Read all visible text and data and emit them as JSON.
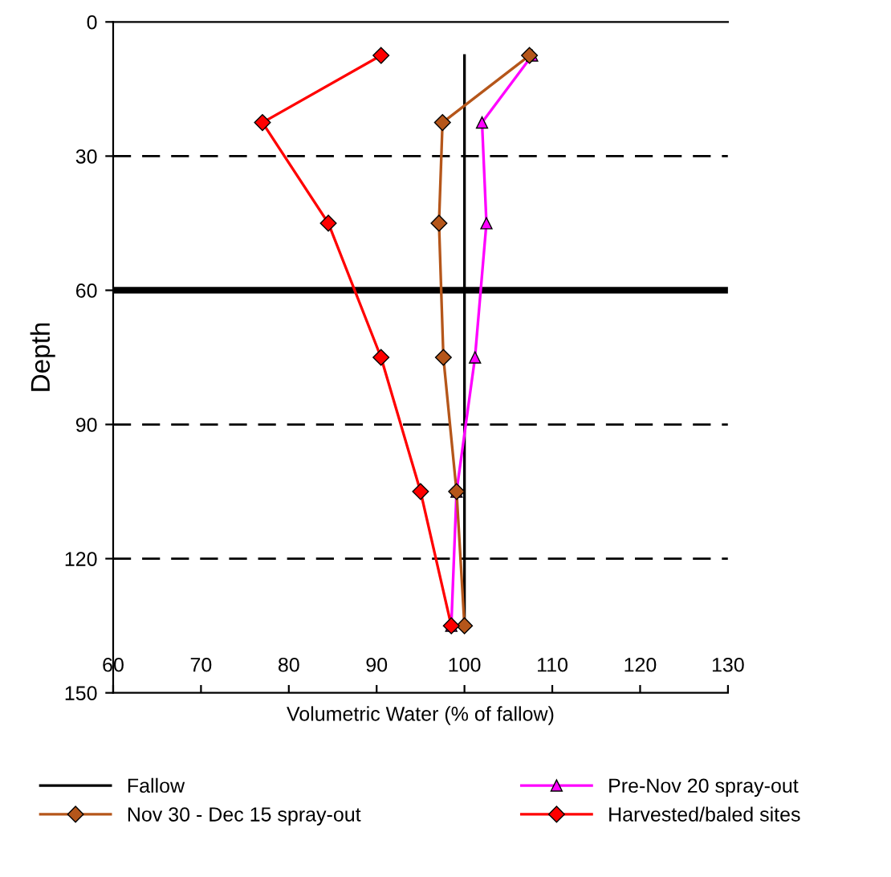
{
  "chart_data": {
    "type": "line",
    "xlabel": "Volumetric Water (% of fallow)",
    "ylabel": "Depth",
    "xlim": [
      60,
      130
    ],
    "xticks": [
      60,
      70,
      80,
      90,
      100,
      110,
      120,
      130
    ],
    "ylim": [
      150,
      0
    ],
    "yticks": [
      0,
      30,
      60,
      90,
      120,
      150
    ],
    "grid": false,
    "legend": "bottom",
    "ref_lines": [
      {
        "axis": "y",
        "value": 30,
        "color": "#000000",
        "line_style": "dashed"
      },
      {
        "axis": "y",
        "value": 60,
        "color": "#000000",
        "line_style": "solid"
      },
      {
        "axis": "y",
        "value": 90,
        "color": "#000000",
        "line_style": "dashed"
      },
      {
        "axis": "y",
        "value": 120,
        "color": "#000000",
        "line_style": "dashed"
      }
    ],
    "series": [
      {
        "name": "Fallow",
        "color": "#000000",
        "x": [
          100,
          100
        ],
        "values": [
          7.5,
          135
        ]
      },
      {
        "name": "Pre-Nov 20 spray-out",
        "color": "#ff00ff",
        "marker": "triangle",
        "x": [
          107.7,
          102,
          102.5,
          101.2,
          99.1,
          98.5
        ],
        "values": [
          7.5,
          22.5,
          45,
          75,
          105,
          135
        ]
      },
      {
        "name": "Nov 30 - Dec 15 spray-out",
        "color": "#b5561a",
        "marker": "diamond",
        "x": [
          107.4,
          97.5,
          97.1,
          97.6,
          99.1,
          100
        ],
        "values": [
          7.5,
          22.5,
          45,
          75,
          105,
          135
        ]
      },
      {
        "name": "Harvested/baled sites",
        "color": "#ff0000",
        "marker": "diamond",
        "x": [
          90.5,
          77,
          84.5,
          90.5,
          95,
          98.5
        ],
        "values": [
          7.5,
          22.5,
          45,
          75,
          105,
          135
        ]
      }
    ]
  }
}
